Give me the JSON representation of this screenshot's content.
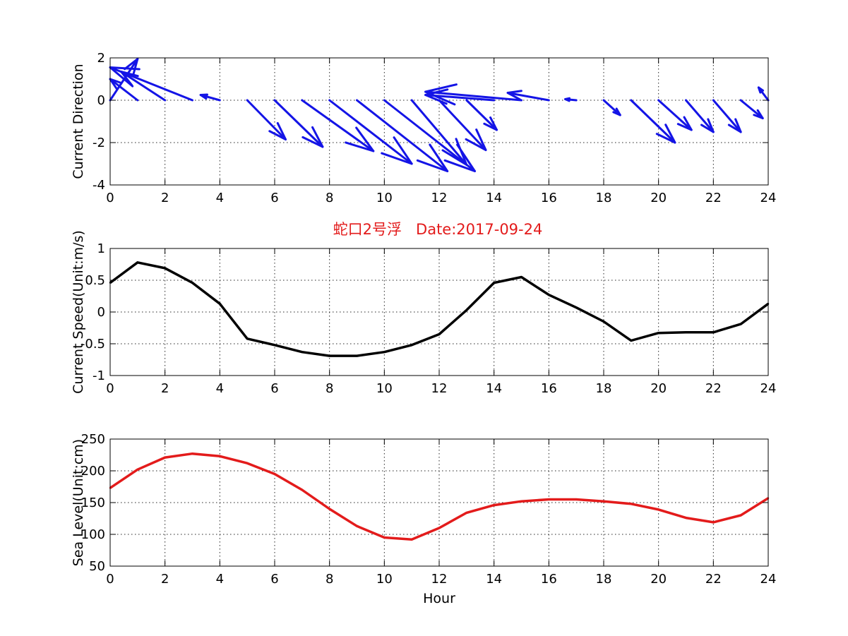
{
  "figure": {
    "title": "蛇口2号浮   Date:2017-09-24",
    "title_color": "#e31b1b",
    "background": "#ffffff"
  },
  "chart_data": [
    {
      "type": "quiver",
      "ylabel": "Current Direction",
      "xlabel": "",
      "xlim": [
        0,
        24
      ],
      "ylim": [
        -4,
        2
      ],
      "xticks": [
        0,
        2,
        4,
        6,
        8,
        10,
        12,
        14,
        16,
        18,
        20,
        22,
        24
      ],
      "yticks": [
        -4,
        -2,
        0,
        2
      ],
      "grid": true,
      "color": "#1414e6",
      "arrows": [
        {
          "x": 0,
          "y": 0,
          "u": 1.0,
          "v": 1.95
        },
        {
          "x": 1,
          "y": 0,
          "u": -1.0,
          "v": 1.0
        },
        {
          "x": 2,
          "y": 0,
          "u": -1.6,
          "v": 1.35
        },
        {
          "x": 3,
          "y": 0,
          "u": -3.0,
          "v": 1.55
        },
        {
          "x": 4,
          "y": 0,
          "u": -0.7,
          "v": 0.25
        },
        {
          "x": 5,
          "y": 0,
          "u": 1.4,
          "v": -1.85
        },
        {
          "x": 6,
          "y": 0,
          "u": 1.75,
          "v": -2.2
        },
        {
          "x": 7,
          "y": 0,
          "u": 2.6,
          "v": -2.4
        },
        {
          "x": 8,
          "y": 0,
          "u": 3.0,
          "v": -3.0
        },
        {
          "x": 9,
          "y": 0,
          "u": 3.3,
          "v": -3.35
        },
        {
          "x": 10,
          "y": 0,
          "u": 3.3,
          "v": -3.35
        },
        {
          "x": 11,
          "y": 0,
          "u": 2.0,
          "v": -3.05
        },
        {
          "x": 12,
          "y": 0,
          "u": 1.7,
          "v": -2.35
        },
        {
          "x": 13,
          "y": 0,
          "u": 1.1,
          "v": -1.4
        },
        {
          "x": 14,
          "y": 0,
          "u": -2.5,
          "v": 0.25
        },
        {
          "x": 15,
          "y": 0,
          "u": -3.5,
          "v": 0.4
        },
        {
          "x": 16,
          "y": 0,
          "u": -1.5,
          "v": 0.35
        },
        {
          "x": 17,
          "y": 0,
          "u": -0.4,
          "v": 0.05
        },
        {
          "x": 18,
          "y": 0,
          "u": 0.6,
          "v": -0.7
        },
        {
          "x": 19,
          "y": 0,
          "u": 1.6,
          "v": -2.0
        },
        {
          "x": 20,
          "y": 0,
          "u": 1.2,
          "v": -1.4
        },
        {
          "x": 21,
          "y": 0,
          "u": 1.0,
          "v": -1.5
        },
        {
          "x": 22,
          "y": 0,
          "u": 1.0,
          "v": -1.5
        },
        {
          "x": 23,
          "y": 0,
          "u": 0.8,
          "v": -0.85
        },
        {
          "x": 24,
          "y": 0,
          "u": -0.35,
          "v": 0.6
        }
      ]
    },
    {
      "type": "line",
      "ylabel": "Current Speed(Unit:m/s)",
      "xlabel": "",
      "xlim": [
        0,
        24
      ],
      "ylim": [
        -1,
        1
      ],
      "xticks": [
        0,
        2,
        4,
        6,
        8,
        10,
        12,
        14,
        16,
        18,
        20,
        22,
        24
      ],
      "yticks": [
        -1,
        -0.5,
        0,
        0.5,
        1
      ],
      "grid": true,
      "color": "#000000",
      "x": [
        0,
        1,
        2,
        3,
        4,
        5,
        6,
        7,
        8,
        9,
        10,
        11,
        12,
        13,
        14,
        15,
        16,
        17,
        18,
        19,
        20,
        21,
        22,
        23,
        24
      ],
      "y": [
        0.46,
        0.78,
        0.69,
        0.46,
        0.13,
        -0.42,
        -0.52,
        -0.63,
        -0.69,
        -0.69,
        -0.63,
        -0.52,
        -0.35,
        0.03,
        0.46,
        0.55,
        0.27,
        0.07,
        -0.15,
        -0.45,
        -0.33,
        -0.32,
        -0.32,
        -0.19,
        0.13
      ]
    },
    {
      "type": "line",
      "ylabel": "Sea Level(Unit:cm)",
      "xlabel": "Hour",
      "xlim": [
        0,
        24
      ],
      "ylim": [
        50,
        250
      ],
      "xticks": [
        0,
        2,
        4,
        6,
        8,
        10,
        12,
        14,
        16,
        18,
        20,
        22,
        24
      ],
      "yticks": [
        50,
        100,
        150,
        200,
        250
      ],
      "grid": true,
      "color": "#e31b1b",
      "x": [
        0,
        1,
        2,
        3,
        4,
        5,
        6,
        7,
        8,
        9,
        10,
        11,
        12,
        13,
        14,
        15,
        16,
        17,
        18,
        19,
        20,
        21,
        22,
        23,
        24
      ],
      "y": [
        173,
        202,
        221,
        227,
        223,
        212,
        195,
        170,
        140,
        113,
        95,
        92,
        110,
        134,
        146,
        152,
        155,
        155,
        152,
        148,
        139,
        126,
        119,
        130,
        157
      ]
    }
  ]
}
